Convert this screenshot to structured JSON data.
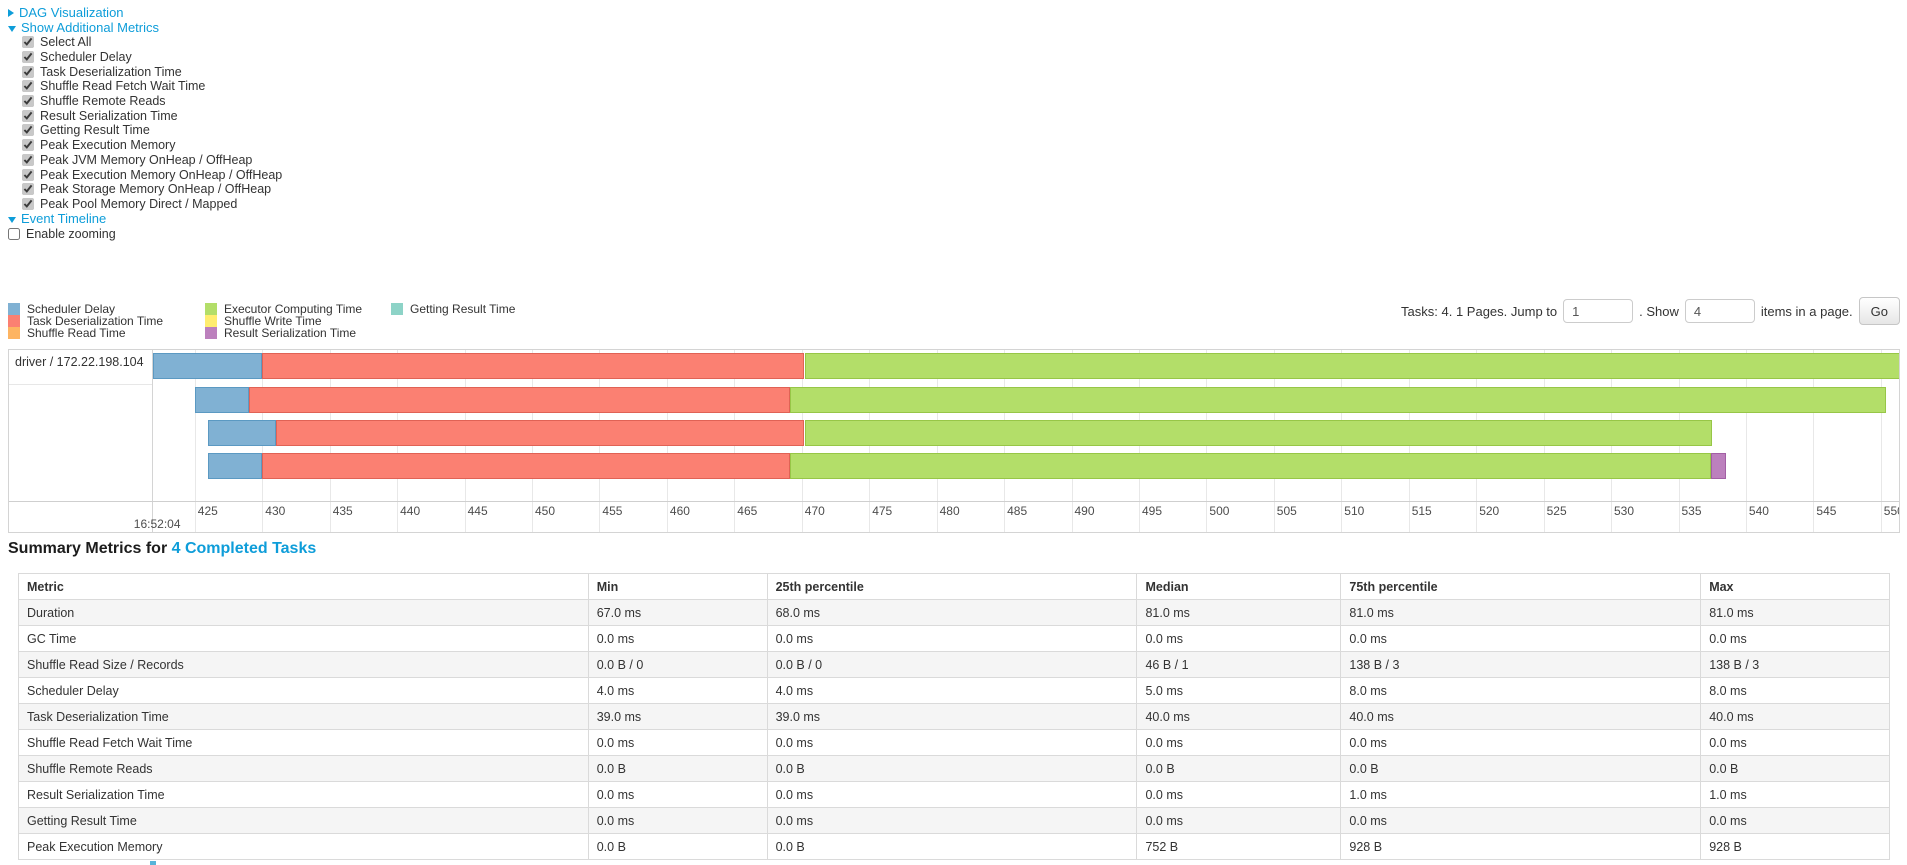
{
  "colors": {
    "link": "#0e9dd9"
  },
  "sections": {
    "dag_label": "DAG Visualization",
    "metrics_label": "Show Additional Metrics",
    "timeline_label": "Event Timeline",
    "enable_zooming_label": "Enable zooming"
  },
  "metric_checkboxes": [
    "Select All",
    "Scheduler Delay",
    "Task Deserialization Time",
    "Shuffle Read Fetch Wait Time",
    "Shuffle Remote Reads",
    "Result Serialization Time",
    "Getting Result Time",
    "Peak Execution Memory",
    "Peak JVM Memory OnHeap / OffHeap",
    "Peak Execution Memory OnHeap / OffHeap",
    "Peak Storage Memory OnHeap / OffHeap",
    "Peak Pool Memory Direct / Mapped"
  ],
  "legend": {
    "items": [
      {
        "label": "Scheduler Delay",
        "key": "scheduler_delay"
      },
      {
        "label": "Task Deserialization Time",
        "key": "task_deserialization"
      },
      {
        "label": "Shuffle Read Time",
        "key": "shuffle_read"
      },
      {
        "label": "Executor Computing Time",
        "key": "executor_computing"
      },
      {
        "label": "Shuffle Write Time",
        "key": "shuffle_write"
      },
      {
        "label": "Result Serialization Time",
        "key": "result_serialization"
      },
      {
        "label": "Getting Result Time",
        "key": "getting_result"
      }
    ]
  },
  "palette": {
    "scheduler_delay": {
      "fill": "#80B1D3",
      "border": "#5B99C2"
    },
    "task_deserialization": {
      "fill": "#FB8072",
      "border": "#E06255"
    },
    "shuffle_read": {
      "fill": "#FDB462",
      "border": "#E89A3F"
    },
    "executor_computing": {
      "fill": "#B3DE69",
      "border": "#97C647"
    },
    "shuffle_write": {
      "fill": "#FFED6F",
      "border": "#E0CD4D"
    },
    "result_serialization": {
      "fill": "#BC80BD",
      "border": "#A25FA4"
    },
    "getting_result": {
      "fill": "#8DD3C7",
      "border": "#6BBDAE"
    }
  },
  "pagination": {
    "prefix": "Tasks: 4. 1 Pages. Jump to",
    "jump_value": "1",
    "show_label": ". Show",
    "show_value": "4",
    "suffix": "items in a page.",
    "go_label": "Go"
  },
  "chart_data": {
    "type": "bar",
    "subtype": "stacked-horizontal-event-timeline",
    "group_label": "driver / 172.22.198.104",
    "x_axis": {
      "range": [
        421.9,
        551.35
      ],
      "ticks": [
        425,
        430,
        435,
        440,
        445,
        450,
        455,
        460,
        465,
        470,
        475,
        480,
        485,
        490,
        495,
        500,
        505,
        510,
        515,
        520,
        525,
        530,
        535,
        540,
        545,
        550
      ],
      "major_label": {
        "text": "16:52:04",
        "tick": 425
      }
    },
    "tasks": [
      {
        "start": 421.9,
        "segments": [
          {
            "metric": "scheduler_delay",
            "ms": 8.1
          },
          {
            "metric": "task_deserialization",
            "ms": 40.2
          },
          {
            "metric": "executor_computing",
            "ms": 81.2
          }
        ]
      },
      {
        "start": 425.0,
        "segments": [
          {
            "metric": "scheduler_delay",
            "ms": 4.0
          },
          {
            "metric": "task_deserialization",
            "ms": 40.1
          },
          {
            "metric": "executor_computing",
            "ms": 81.3
          }
        ]
      },
      {
        "start": 426.0,
        "segments": [
          {
            "metric": "scheduler_delay",
            "ms": 5.0
          },
          {
            "metric": "task_deserialization",
            "ms": 39.2
          },
          {
            "metric": "executor_computing",
            "ms": 67.3
          }
        ]
      },
      {
        "start": 426.0,
        "segments": [
          {
            "metric": "scheduler_delay",
            "ms": 4.0
          },
          {
            "metric": "task_deserialization",
            "ms": 39.1
          },
          {
            "metric": "executor_computing",
            "ms": 68.3
          },
          {
            "metric": "result_serialization",
            "ms": 1.1
          }
        ]
      }
    ]
  },
  "summary": {
    "heading_prefix": "Summary Metrics for ",
    "heading_link": "4 Completed Tasks",
    "columns": [
      "Metric",
      "Min",
      "25th percentile",
      "Median",
      "75th percentile",
      "Max"
    ],
    "rows": [
      {
        "metric": "Duration",
        "values": [
          "67.0 ms",
          "68.0 ms",
          "81.0 ms",
          "81.0 ms",
          "81.0 ms"
        ]
      },
      {
        "metric": "GC Time",
        "values": [
          "0.0 ms",
          "0.0 ms",
          "0.0 ms",
          "0.0 ms",
          "0.0 ms"
        ]
      },
      {
        "metric": "Shuffle Read Size / Records",
        "values": [
          "0.0 B / 0",
          "0.0 B / 0",
          "46 B / 1",
          "138 B / 3",
          "138 B / 3"
        ]
      },
      {
        "metric": "Scheduler Delay",
        "values": [
          "4.0 ms",
          "4.0 ms",
          "5.0 ms",
          "8.0 ms",
          "8.0 ms"
        ]
      },
      {
        "metric": "Task Deserialization Time",
        "values": [
          "39.0 ms",
          "39.0 ms",
          "40.0 ms",
          "40.0 ms",
          "40.0 ms"
        ]
      },
      {
        "metric": "Shuffle Read Fetch Wait Time",
        "values": [
          "0.0 ms",
          "0.0 ms",
          "0.0 ms",
          "0.0 ms",
          "0.0 ms"
        ]
      },
      {
        "metric": "Shuffle Remote Reads",
        "values": [
          "0.0 B",
          "0.0 B",
          "0.0 B",
          "0.0 B",
          "0.0 B"
        ]
      },
      {
        "metric": "Result Serialization Time",
        "values": [
          "0.0 ms",
          "0.0 ms",
          "0.0 ms",
          "1.0 ms",
          "1.0 ms"
        ]
      },
      {
        "metric": "Getting Result Time",
        "values": [
          "0.0 ms",
          "0.0 ms",
          "0.0 ms",
          "0.0 ms",
          "0.0 ms"
        ]
      },
      {
        "metric": "Peak Execution Memory",
        "values": [
          "0.0 B",
          "0.0 B",
          "752 B",
          "928 B",
          "928 B"
        ]
      }
    ]
  }
}
